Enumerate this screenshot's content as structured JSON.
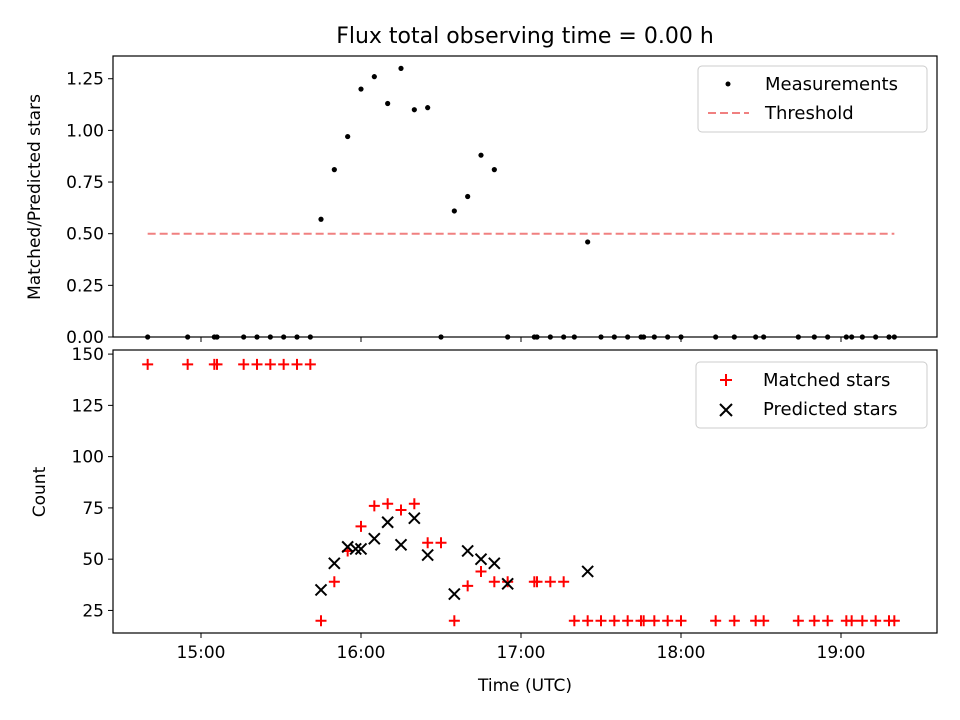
{
  "chart_data": [
    {
      "type": "scatter",
      "title": "Flux total observing time = 0.00 h",
      "xlabel": "",
      "ylabel": "Matched/Predicted stars",
      "ylim": [
        0,
        1.36
      ],
      "yticks": [
        "0.00",
        "0.25",
        "0.50",
        "0.75",
        "1.00",
        "1.25"
      ],
      "legend_position": "top-right",
      "series": [
        {
          "name": "Measurements",
          "marker": "dot",
          "color": "#000000",
          "x": [
            "14:40",
            "14:55",
            "15:05",
            "15:06",
            "15:16",
            "15:21",
            "15:26",
            "15:31",
            "15:36",
            "15:41",
            "15:45",
            "15:50",
            "15:55",
            "16:00",
            "16:05",
            "16:10",
            "16:15",
            "16:20",
            "16:25",
            "16:30",
            "16:35",
            "16:40",
            "16:45",
            "16:50",
            "16:55",
            "17:05",
            "17:06",
            "17:11",
            "17:16",
            "17:20",
            "17:25",
            "17:30",
            "17:35",
            "17:40",
            "17:45",
            "17:46",
            "17:50",
            "17:55",
            "18:00",
            "18:13",
            "18:20",
            "18:28",
            "18:31",
            "18:44",
            "18:50",
            "18:55",
            "19:02",
            "19:04",
            "19:08",
            "19:13",
            "19:18",
            "19:20"
          ],
          "y": [
            0,
            0,
            0,
            0,
            0,
            0,
            0,
            0,
            0,
            0,
            0.57,
            0.81,
            0.97,
            1.2,
            1.26,
            1.13,
            1.3,
            1.1,
            1.11,
            0,
            0.61,
            0.68,
            0.88,
            0.81,
            0,
            0,
            0,
            0,
            0,
            0,
            0.46,
            0,
            0,
            0,
            0,
            0,
            0,
            0,
            0,
            0,
            0,
            0,
            0,
            0,
            0,
            0,
            0,
            0,
            0,
            0,
            0,
            0
          ]
        },
        {
          "name": "Threshold",
          "line": "dashed",
          "color": "#f08080",
          "x": [
            "14:40",
            "19:20"
          ],
          "y": [
            0.5,
            0.5
          ]
        }
      ]
    },
    {
      "type": "scatter",
      "title": "",
      "xlabel": "Time (UTC)",
      "ylabel": "Count",
      "ylim": [
        14,
        152
      ],
      "yticks": [
        "25",
        "50",
        "75",
        "100",
        "125",
        "150"
      ],
      "xlim": [
        "14:27",
        "19:36"
      ],
      "xticks": [
        "15:00",
        "16:00",
        "17:00",
        "18:00",
        "19:00"
      ],
      "legend_position": "top-right",
      "series": [
        {
          "name": "Matched stars",
          "marker": "plus",
          "color": "#ff0000",
          "x": [
            "14:40",
            "14:55",
            "15:05",
            "15:06",
            "15:16",
            "15:21",
            "15:26",
            "15:31",
            "15:36",
            "15:41",
            "15:45",
            "15:50",
            "15:55",
            "16:00",
            "16:05",
            "16:10",
            "16:15",
            "16:20",
            "16:25",
            "16:30",
            "16:35",
            "16:40",
            "16:45",
            "16:50",
            "16:55",
            "17:05",
            "17:06",
            "17:11",
            "17:16",
            "17:20",
            "17:25",
            "17:30",
            "17:35",
            "17:40",
            "17:45",
            "17:46",
            "17:50",
            "17:55",
            "18:00",
            "18:13",
            "18:20",
            "18:28",
            "18:31",
            "18:44",
            "18:50",
            "18:55",
            "19:02",
            "19:04",
            "19:08",
            "19:13",
            "19:18",
            "19:20"
          ],
          "y": [
            145,
            145,
            145,
            145,
            145,
            145,
            145,
            145,
            145,
            145,
            20,
            39,
            54,
            66,
            76,
            77,
            74,
            77,
            58,
            58,
            20,
            37,
            44,
            39,
            39,
            39,
            39,
            39,
            39,
            20,
            20,
            20,
            20,
            20,
            20,
            20,
            20,
            20,
            20,
            20,
            20,
            20,
            20,
            20,
            20,
            20,
            20,
            20,
            20,
            20,
            20,
            20
          ]
        },
        {
          "name": "Predicted stars",
          "marker": "x",
          "color": "#000000",
          "x": [
            "15:45",
            "15:50",
            "15:55",
            "15:58",
            "16:00",
            "16:05",
            "16:10",
            "16:15",
            "16:20",
            "16:25",
            "16:35",
            "16:40",
            "16:45",
            "16:50",
            "16:55",
            "17:25"
          ],
          "y": [
            35,
            48,
            56,
            55,
            55,
            60,
            68,
            57,
            70,
            52,
            33,
            54,
            50,
            48,
            38,
            44
          ]
        }
      ]
    }
  ]
}
